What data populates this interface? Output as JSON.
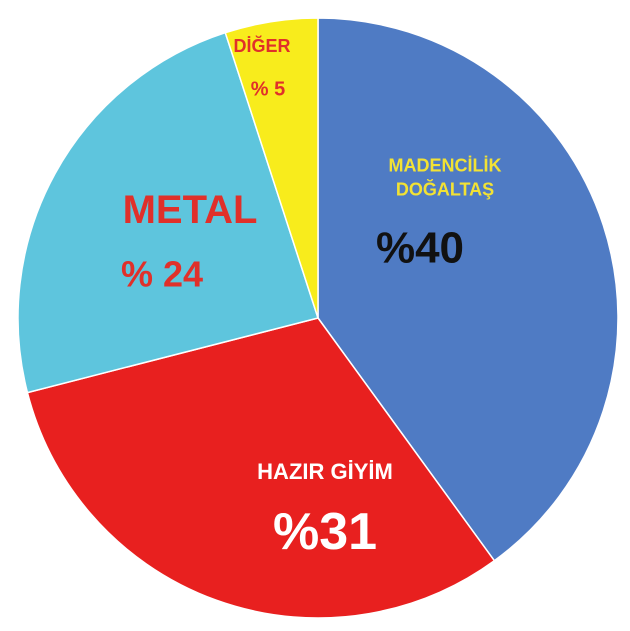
{
  "chart_data": {
    "type": "pie",
    "categories": [
      "MADENCİLİK DOĞALTAŞ",
      "HAZIR GİYİM",
      "METAL",
      "DİĞER"
    ],
    "values": [
      40,
      31,
      24,
      5
    ],
    "value_labels": [
      "%40",
      "%31",
      "% 24",
      "% 5"
    ],
    "colors": [
      "#4f7bc4",
      "#e8201f",
      "#5ec5dd",
      "#f8ec1c"
    ],
    "category_label_colors": [
      "#f2e234",
      "#ffffff",
      "#e0302a",
      "#e0302a"
    ],
    "value_label_colors": [
      "#111111",
      "#ffffff",
      "#e0302a",
      "#e0302a"
    ]
  }
}
